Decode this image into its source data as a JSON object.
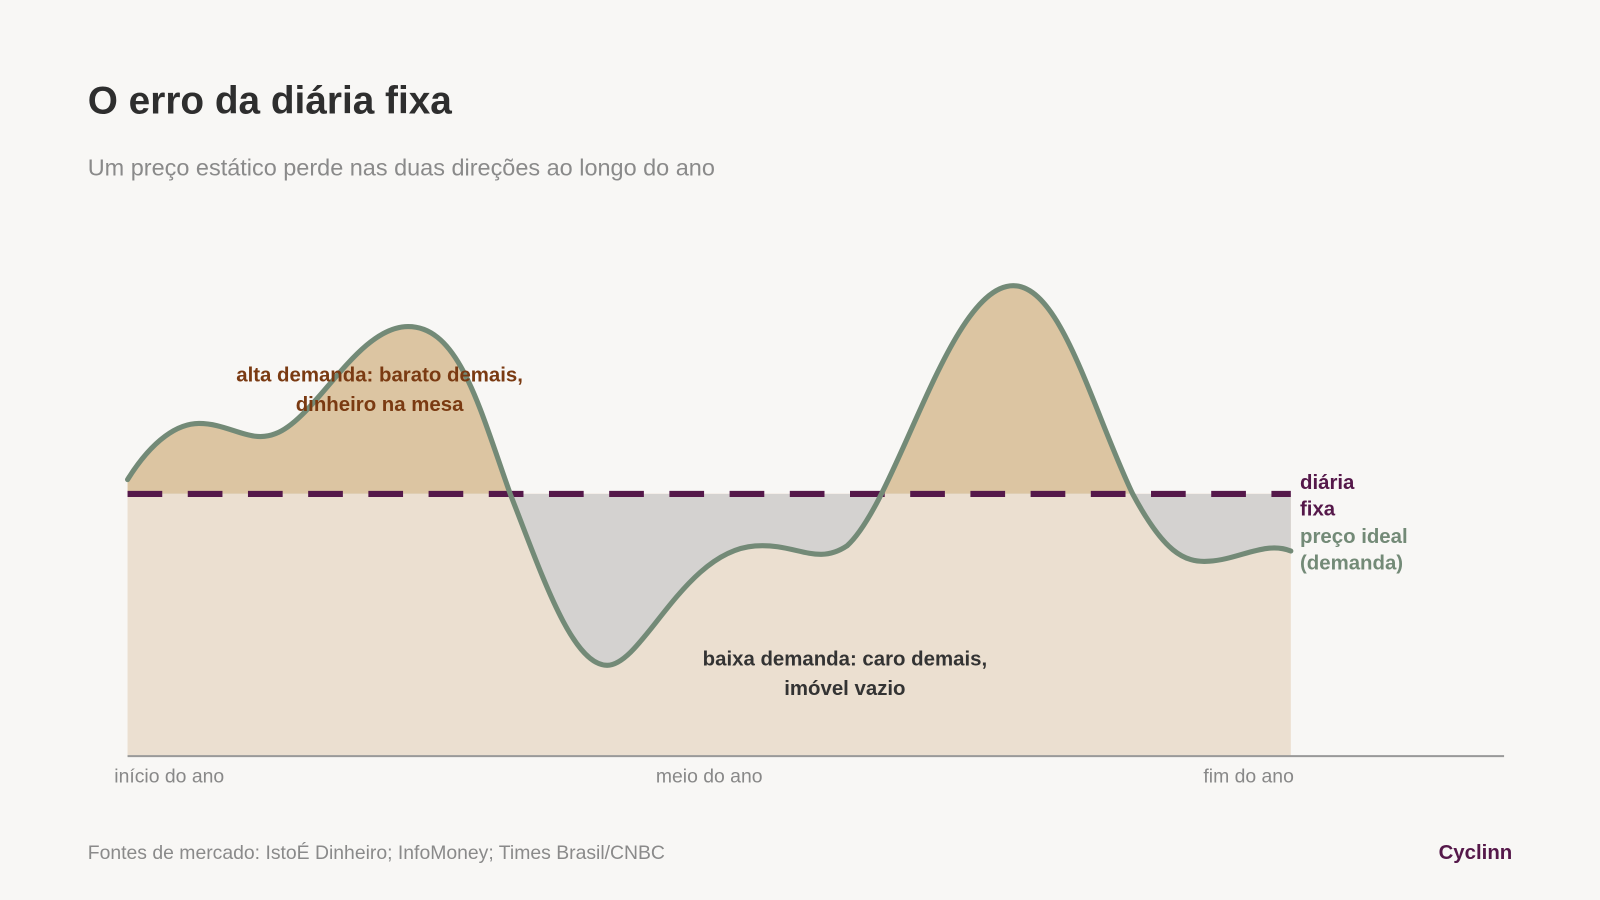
{
  "title": "O erro da diária fixa",
  "subtitle": "Um preço estático perde nas duas direções ao longo do ano",
  "annotations": {
    "high_demand": [
      "alta demanda: barato demais,",
      "dinheiro na mesa"
    ],
    "low_demand": [
      "baixa demanda: caro demais,",
      "imóvel vazio"
    ]
  },
  "legend": {
    "fixed_rate": [
      "diária",
      "fixa"
    ],
    "ideal_price": [
      "preço ideal",
      "(demanda)"
    ]
  },
  "x_labels": [
    "início do ano",
    "meio do ano",
    "fim do ano"
  ],
  "source": "Fontes de mercado: IstoÉ Dinheiro; InfoMoney; Times Brasil/CNBC",
  "brand": "Cyclinn"
}
